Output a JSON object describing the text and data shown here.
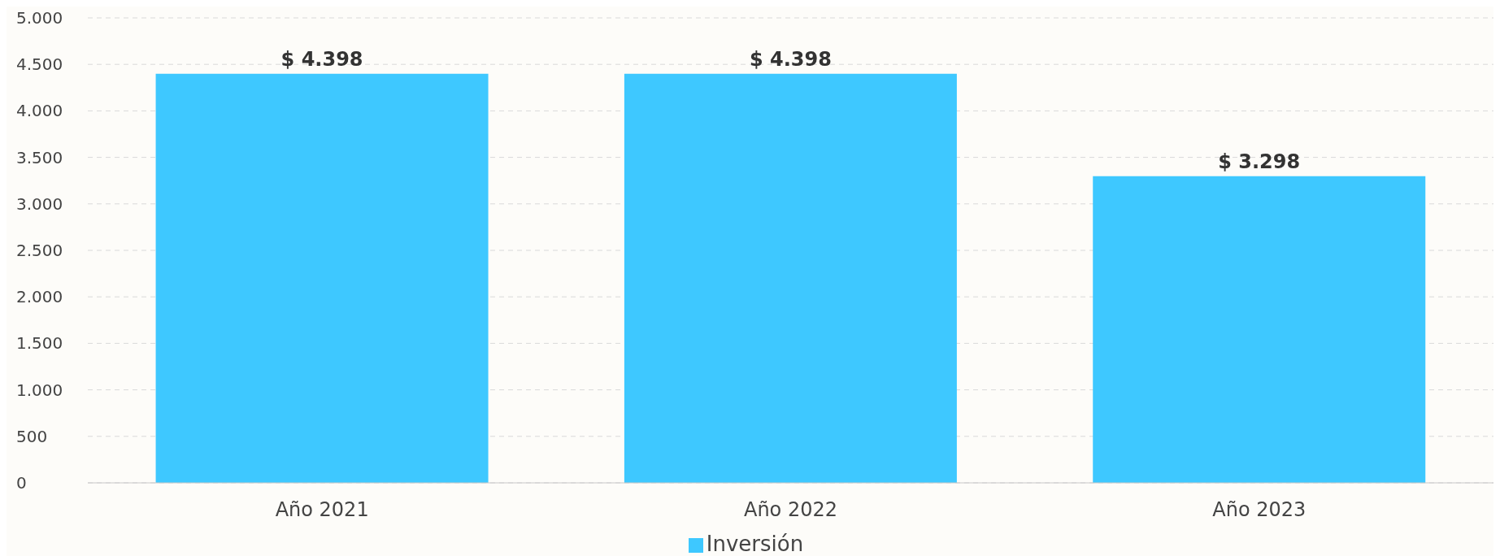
{
  "chart_data": {
    "type": "bar",
    "categories": [
      "Año 2021",
      "Año 2022",
      "Año 2023"
    ],
    "series": [
      {
        "name": "Inversión",
        "color": "#3ec8ff",
        "values": [
          4398,
          4398,
          3298
        ],
        "value_labels": [
          "$ 4.398",
          "$ 4.398",
          "$ 3.298"
        ]
      }
    ],
    "ylim": [
      0,
      5000
    ],
    "yticks": [
      0,
      500,
      {
        "value": 1000,
        "label": "1.000"
      },
      {
        "value": 1500,
        "label": "1.500"
      },
      {
        "value": 2000,
        "label": "2.000"
      },
      {
        "value": 2500,
        "label": "2.500"
      },
      {
        "value": 3000,
        "label": "3.000"
      },
      {
        "value": 3500,
        "label": "3.500"
      },
      {
        "value": 4000,
        "label": "4.000"
      },
      {
        "value": 4500,
        "label": "4.500"
      },
      {
        "value": 5000,
        "label": "5.000"
      }
    ],
    "grid": "y",
    "legend": "bottom"
  }
}
